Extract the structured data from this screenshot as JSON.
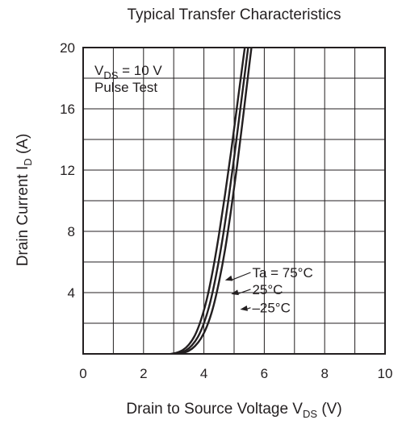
{
  "chart_data": {
    "type": "line",
    "title": "Typical Transfer Characteristics",
    "xlabel": {
      "main": "Drain to Source Voltage  V",
      "sub": "DS",
      "unit": "  (V)"
    },
    "ylabel": {
      "main": "Drain Current  I",
      "sub": "D",
      "unit": "  (A)"
    },
    "xlim": [
      0,
      10
    ],
    "ylim": [
      0,
      20
    ],
    "x_ticks": [
      0,
      2,
      4,
      6,
      8,
      10
    ],
    "y_ticks": [
      4,
      8,
      12,
      16,
      20
    ],
    "x_grid_step": 1,
    "y_grid_step": 2,
    "grid": true,
    "condition": {
      "line1_main": "V",
      "line1_sub": "DS",
      "line1_value": " = 10 V",
      "line2": "Pulse Test"
    },
    "series": [
      {
        "name": "Ta = 75°C",
        "x": [
          2.9,
          3.1,
          3.3,
          3.5,
          3.7,
          3.9,
          4.1,
          4.3,
          4.5,
          4.7,
          4.9,
          5.1,
          5.3,
          5.45
        ],
        "y": [
          0,
          0.08,
          0.25,
          0.6,
          1.2,
          2.2,
          3.6,
          5.5,
          7.8,
          10.4,
          13.2,
          16.2,
          19.2,
          21.4
        ]
      },
      {
        "name": "25°C",
        "x": [
          3.0,
          3.2,
          3.4,
          3.6,
          3.8,
          4.0,
          4.2,
          4.4,
          4.6,
          4.8,
          5.0,
          5.2,
          5.4,
          5.55
        ],
        "y": [
          0,
          0.07,
          0.22,
          0.55,
          1.1,
          2.0,
          3.3,
          5.1,
          7.3,
          9.9,
          12.8,
          15.9,
          19.0,
          21.3
        ]
      },
      {
        "name": "–25°C",
        "x": [
          3.1,
          3.3,
          3.5,
          3.7,
          3.9,
          4.1,
          4.3,
          4.5,
          4.7,
          4.9,
          5.1,
          5.3,
          5.5,
          5.65
        ],
        "y": [
          0,
          0.06,
          0.2,
          0.5,
          1.0,
          1.8,
          3.0,
          4.7,
          6.8,
          9.4,
          12.3,
          15.5,
          18.8,
          21.2
        ]
      }
    ],
    "annotations": [
      {
        "text": "Ta = 75°C",
        "x": 5.6,
        "y": 5.0,
        "arrow_to": [
          4.7,
          4.8
        ]
      },
      {
        "text": "25°C",
        "x": 5.6,
        "y": 3.9,
        "arrow_to": [
          4.9,
          3.9
        ]
      },
      {
        "text": "–25°C",
        "x": 5.6,
        "y": 2.7,
        "arrow_to": [
          5.2,
          2.9
        ]
      }
    ]
  }
}
